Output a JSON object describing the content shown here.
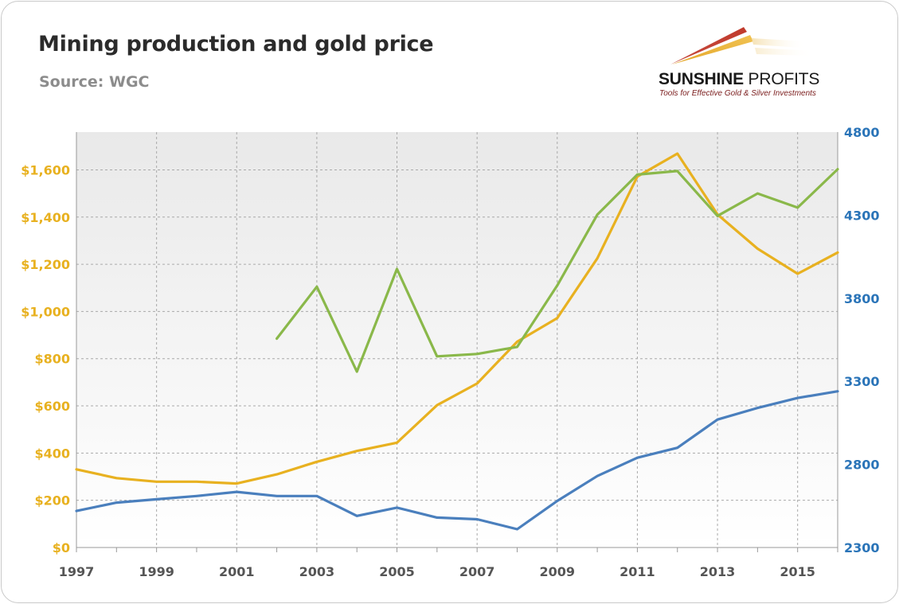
{
  "header": {
    "title": "Mining production and gold price",
    "source": "Source: WGC"
  },
  "logo": {
    "name_bold": "SUNSHINE",
    "name_thin": " PROFITS",
    "tagline": "Tools for Effective Gold & Silver Investments"
  },
  "colors": {
    "gold_price": "#e8b120",
    "mine_production": "#4a7fbd",
    "green_series": "#8ab84a",
    "left_axis": "#e8b120",
    "right_axis": "#2a74b8"
  },
  "chart_data": {
    "type": "line",
    "x": [
      1997,
      1998,
      1999,
      2000,
      2001,
      2002,
      2003,
      2004,
      2005,
      2006,
      2007,
      2008,
      2009,
      2010,
      2011,
      2012,
      2013,
      2014,
      2015,
      2016
    ],
    "x_tick_labels": [
      "1997",
      "1999",
      "2001",
      "2003",
      "2005",
      "2007",
      "2009",
      "2011",
      "2013",
      "2015"
    ],
    "xlim": [
      1997,
      2016
    ],
    "y_left": {
      "ylim": [
        0,
        1760
      ],
      "ticks": [
        0,
        200,
        400,
        600,
        800,
        1000,
        1200,
        1400,
        1600
      ],
      "tick_labels": [
        "$0",
        "$200",
        "$400",
        "$600",
        "$800",
        "$1,000",
        "$1,200",
        "$1,400",
        "$1,600"
      ]
    },
    "y_right": {
      "ylim": [
        2300,
        4800
      ],
      "ticks": [
        2300,
        2800,
        3300,
        3800,
        4300,
        4800
      ],
      "tick_labels": [
        "2300",
        "2800",
        "3300",
        "3800",
        "4300",
        "4800"
      ]
    },
    "grid": true,
    "series": [
      {
        "axis": "left",
        "values": [
          331,
          294,
          279,
          279,
          271,
          310,
          363,
          409,
          444,
          603,
          695,
          872,
          972,
          1225,
          1572,
          1669,
          1411,
          1266,
          1160,
          1250
        ]
      },
      {
        "axis": "left",
        "values": [
          null,
          null,
          null,
          null,
          null,
          885,
          1105,
          745,
          1180,
          810,
          820,
          850,
          1110,
          1410,
          1580,
          1595,
          1405,
          1500,
          1440,
          1603
        ]
      },
      {
        "axis": "right",
        "values": [
          2520,
          2570,
          2590,
          2610,
          2635,
          2610,
          2610,
          2490,
          2540,
          2480,
          2470,
          2410,
          2580,
          2730,
          2840,
          2900,
          3070,
          3140,
          3200,
          3240
        ]
      }
    ]
  }
}
